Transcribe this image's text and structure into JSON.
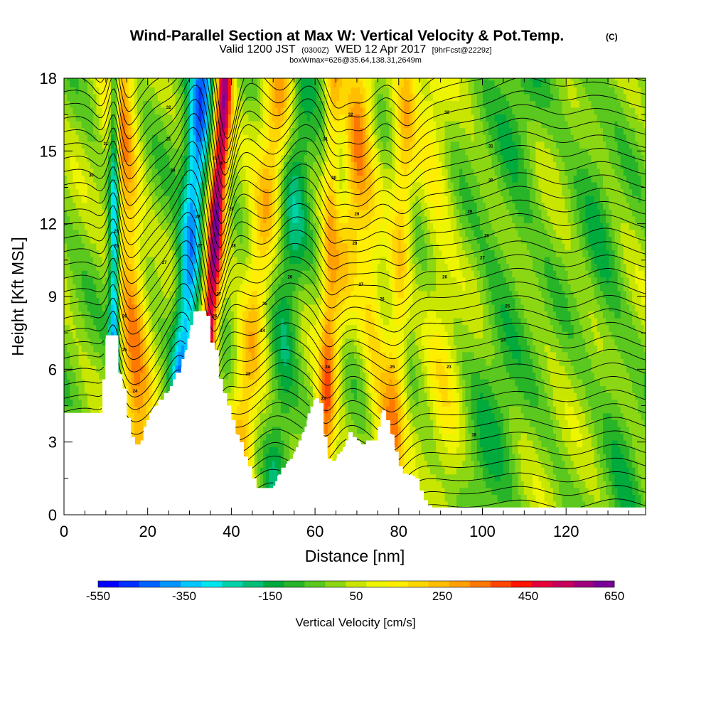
{
  "chart_data": {
    "type": "heatmap",
    "title": "Wind-Parallel Section at Max W: Vertical Velocity & Pot.Temp.",
    "title_suffix": "(C)",
    "subtitle_prefix": "Valid 1200 JST",
    "subtitle_zulu": "(0300Z)",
    "subtitle_date": "WED 12 Apr 2017",
    "subtitle_fcst": "[9hrFcst@2229z]",
    "info_line": "boxWmax=626@35.64,138.31,2649m",
    "xlabel": "Distance [nm]",
    "ylabel": "Height [Kft MSL]",
    "xlim": [
      0,
      139
    ],
    "ylim": [
      0,
      18
    ],
    "x_ticks": [
      "0",
      "20",
      "40",
      "60",
      "80",
      "100",
      "120"
    ],
    "y_ticks": [
      "0",
      "3",
      "6",
      "9",
      "12",
      "15",
      "18"
    ],
    "colorbar": {
      "label": "Vertical Velocity [cm/s]",
      "ticks": [
        "-550",
        "-350",
        "-150",
        "50",
        "250",
        "450",
        "650"
      ],
      "levels": [
        -550,
        -500,
        -450,
        -400,
        -350,
        -300,
        -250,
        -200,
        -150,
        -100,
        -50,
        0,
        50,
        100,
        150,
        200,
        250,
        300,
        350,
        400,
        450,
        500,
        550,
        600,
        650
      ],
      "colors": [
        "#0000ff",
        "#0030ff",
        "#0064ff",
        "#0096ff",
        "#00c8ff",
        "#00e6f0",
        "#00d2aa",
        "#00be78",
        "#00aa3c",
        "#28b428",
        "#5ac81e",
        "#8cd714",
        "#c8e600",
        "#eef500",
        "#ffee00",
        "#ffd700",
        "#ffbe00",
        "#ffa000",
        "#ff7800",
        "#ff4600",
        "#ff1400",
        "#e6003c",
        "#c8005a",
        "#a0007d",
        "#780096"
      ]
    },
    "terrain_kft": [
      [
        0,
        4.2
      ],
      [
        2,
        4.2
      ],
      [
        4,
        4.2
      ],
      [
        6,
        4.2
      ],
      [
        8,
        4.2
      ],
      [
        9,
        4.2
      ],
      [
        10,
        7.4
      ],
      [
        11,
        7.4
      ],
      [
        12,
        7.4
      ],
      [
        13,
        5.8
      ],
      [
        14,
        5.2
      ],
      [
        15,
        4.0
      ],
      [
        16,
        3.2
      ],
      [
        17,
        2.9
      ],
      [
        18,
        2.9
      ],
      [
        19,
        3.4
      ],
      [
        20,
        3.9
      ],
      [
        21,
        4.3
      ],
      [
        22,
        4.5
      ],
      [
        23,
        4.7
      ],
      [
        24,
        4.9
      ],
      [
        25,
        5.1
      ],
      [
        26,
        5.4
      ],
      [
        27,
        5.8
      ],
      [
        28,
        6.1
      ],
      [
        29,
        6.8
      ],
      [
        30,
        7.6
      ],
      [
        31,
        8.3
      ],
      [
        32,
        8.4
      ],
      [
        33,
        8.4
      ],
      [
        34,
        8.2
      ],
      [
        35,
        7.1
      ],
      [
        36,
        6.8
      ],
      [
        37,
        5.6
      ],
      [
        38,
        5.0
      ],
      [
        39,
        4.5
      ],
      [
        40,
        3.9
      ],
      [
        41,
        3.3
      ],
      [
        42,
        3.0
      ],
      [
        43,
        2.4
      ],
      [
        44,
        2.0
      ],
      [
        45,
        1.5
      ],
      [
        46,
        1.1
      ],
      [
        47,
        1.0
      ],
      [
        48,
        1.0
      ],
      [
        49,
        1.0
      ],
      [
        50,
        1.2
      ],
      [
        51,
        1.6
      ],
      [
        52,
        1.9
      ],
      [
        53,
        2.1
      ],
      [
        54,
        2.3
      ],
      [
        55,
        2.6
      ],
      [
        56,
        3.0
      ],
      [
        57,
        3.4
      ],
      [
        58,
        3.9
      ],
      [
        59,
        4.4
      ],
      [
        60,
        4.8
      ],
      [
        61,
        4.6
      ],
      [
        62,
        3.2
      ],
      [
        63,
        2.3
      ],
      [
        64,
        2.2
      ],
      [
        65,
        2.3
      ],
      [
        66,
        2.6
      ],
      [
        67,
        2.8
      ],
      [
        68,
        3.4
      ],
      [
        69,
        3.2
      ],
      [
        70,
        3.0
      ],
      [
        71,
        2.9
      ],
      [
        72,
        2.9
      ],
      [
        73,
        3.0
      ],
      [
        74,
        3.0
      ],
      [
        75,
        3.3
      ],
      [
        76,
        4.3
      ],
      [
        77,
        3.9
      ],
      [
        78,
        3.3
      ],
      [
        79,
        2.6
      ],
      [
        80,
        2.0
      ],
      [
        81,
        1.7
      ],
      [
        82,
        1.6
      ],
      [
        83,
        1.6
      ],
      [
        84,
        1.5
      ],
      [
        85,
        1.0
      ],
      [
        86,
        0.6
      ],
      [
        87,
        0.4
      ],
      [
        88,
        0.3
      ],
      [
        95,
        0.3
      ],
      [
        110,
        0.3
      ],
      [
        125,
        0.3
      ],
      [
        139,
        0.3
      ]
    ],
    "updrafts": [
      {
        "x0": 19,
        "x1": 13,
        "w": 3.5,
        "amp": 300
      },
      {
        "x0": 26,
        "x1": 33,
        "w": 2.8,
        "amp": -400
      },
      {
        "x0": 32,
        "x1": 38.5,
        "w": 2.0,
        "amp": 600
      },
      {
        "x0": 40,
        "x1": 52,
        "w": 3.5,
        "amp": 250
      },
      {
        "x0": 60,
        "x1": 72,
        "w": 3.0,
        "amp": 150
      },
      {
        "x0": 62,
        "x1": 64.5,
        "w": 2.0,
        "amp": 220
      },
      {
        "x0": 78,
        "x1": 69,
        "w": 3.5,
        "amp": 180
      },
      {
        "x0": 78,
        "x1": 82,
        "w": 2.5,
        "amp": 200
      },
      {
        "x0": 50,
        "x1": 57,
        "w": 3.5,
        "amp": -150
      },
      {
        "x0": 12,
        "x1": 12,
        "w": 1.3,
        "amp": -420
      },
      {
        "x0": 92,
        "x1": 88,
        "w": 4,
        "amp": 110
      },
      {
        "x0": 100,
        "x1": 110,
        "w": 6,
        "amp": -80
      },
      {
        "x0": 135,
        "x1": 124,
        "w": 4,
        "amp": -70
      }
    ],
    "theta_labels": [
      {
        "x": 6.5,
        "y": 14,
        "text": "30"
      },
      {
        "x": 10,
        "y": 15.3,
        "text": "31"
      },
      {
        "x": 25,
        "y": 16.8,
        "text": "32"
      },
      {
        "x": 25,
        "y": 15.5,
        "text": "31"
      },
      {
        "x": 26,
        "y": 14.2,
        "text": "30"
      },
      {
        "x": 12.5,
        "y": 11.7,
        "text": "29"
      },
      {
        "x": 12.5,
        "y": 11.1,
        "text": "28"
      },
      {
        "x": 24,
        "y": 10.4,
        "text": "27"
      },
      {
        "x": 14.5,
        "y": 8.2,
        "text": "26"
      },
      {
        "x": 14.5,
        "y": 6.8,
        "text": "25"
      },
      {
        "x": 17,
        "y": 5.1,
        "text": "24"
      },
      {
        "x": 32,
        "y": 12.3,
        "text": "28"
      },
      {
        "x": 32.5,
        "y": 11.1,
        "text": "27"
      },
      {
        "x": 36,
        "y": 14.7,
        "text": "31"
      },
      {
        "x": 37.5,
        "y": 14.5,
        "text": "30"
      },
      {
        "x": 40,
        "y": 12.6,
        "text": "29"
      },
      {
        "x": 40.5,
        "y": 11.1,
        "text": "28"
      },
      {
        "x": 37,
        "y": 9.1,
        "text": "27"
      },
      {
        "x": 36,
        "y": 8.2,
        "text": "26"
      },
      {
        "x": 48,
        "y": 8.7,
        "text": "25"
      },
      {
        "x": 47.5,
        "y": 7.6,
        "text": "24"
      },
      {
        "x": 44,
        "y": 5.8,
        "text": "23"
      },
      {
        "x": 54,
        "y": 9.8,
        "text": "26"
      },
      {
        "x": 62.5,
        "y": 15.5,
        "text": "31"
      },
      {
        "x": 68.5,
        "y": 16.5,
        "text": "32"
      },
      {
        "x": 64.5,
        "y": 13.9,
        "text": "30"
      },
      {
        "x": 70,
        "y": 12.4,
        "text": "29"
      },
      {
        "x": 69.5,
        "y": 11.2,
        "text": "28"
      },
      {
        "x": 71,
        "y": 9.5,
        "text": "27"
      },
      {
        "x": 76,
        "y": 8.9,
        "text": "26"
      },
      {
        "x": 78.5,
        "y": 6.1,
        "text": "25"
      },
      {
        "x": 63,
        "y": 6.1,
        "text": "24"
      },
      {
        "x": 62,
        "y": 4.8,
        "text": "23"
      },
      {
        "x": 91.5,
        "y": 16.6,
        "text": "32"
      },
      {
        "x": 102,
        "y": 15.2,
        "text": "31"
      },
      {
        "x": 102,
        "y": 13.8,
        "text": "30"
      },
      {
        "x": 97,
        "y": 12.5,
        "text": "29"
      },
      {
        "x": 101,
        "y": 11.5,
        "text": "28"
      },
      {
        "x": 100,
        "y": 10.6,
        "text": "27"
      },
      {
        "x": 91,
        "y": 9.8,
        "text": "26"
      },
      {
        "x": 106,
        "y": 8.6,
        "text": "25"
      },
      {
        "x": 105,
        "y": 7.2,
        "text": "24"
      },
      {
        "x": 92,
        "y": 6.1,
        "text": "23"
      },
      {
        "x": 98,
        "y": 3.3,
        "text": "18"
      }
    ]
  }
}
